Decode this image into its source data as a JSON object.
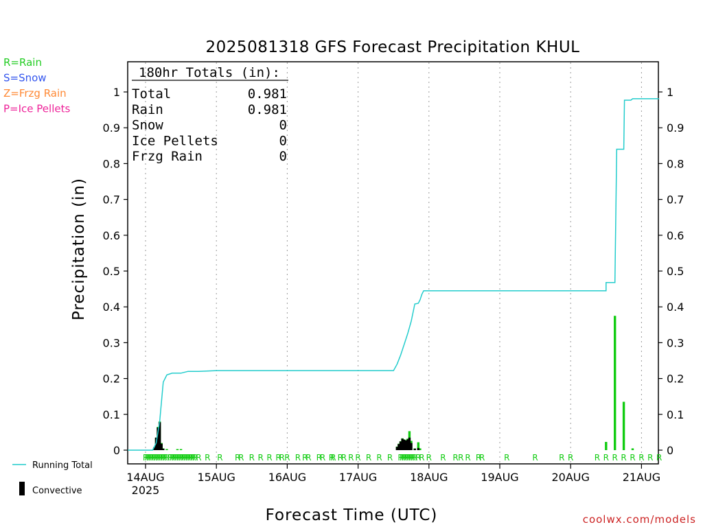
{
  "chart_data": {
    "type": "bar",
    "title": "2025081318 GFS Forecast Precipitation KHUL",
    "ylabel": "Precipitation (in)",
    "xlabel": "Forecast Time (UTC)",
    "ylim": [
      0,
      1.05
    ],
    "y_ticks": [
      "0",
      "0.1",
      "0.2",
      "0.3",
      "0.4",
      "0.5",
      "0.6",
      "0.7",
      "0.8",
      "0.9",
      "1"
    ],
    "x_ticks": [
      {
        "label": "14AUG",
        "day": 0
      },
      {
        "label": "15AUG",
        "day": 1
      },
      {
        "label": "16AUG",
        "day": 2
      },
      {
        "label": "17AUG",
        "day": 3
      },
      {
        "label": "18AUG",
        "day": 4
      },
      {
        "label": "19AUG",
        "day": 5
      },
      {
        "label": "20AUG",
        "day": 6
      },
      {
        "label": "21AUG",
        "day": 7
      }
    ],
    "x_year_label": "2025",
    "x_range_days": [
      -0.25,
      7.25
    ],
    "grid": "vertical dotted at day boundaries",
    "legend_types": [
      {
        "label": "R=Rain",
        "color": "#22cc22"
      },
      {
        "label": "S=Snow",
        "color": "#3355ee"
      },
      {
        "label": "Z=Frzg Rain",
        "color": "#ff8833"
      },
      {
        "label": "P=Ice Pellets",
        "color": "#ee2299"
      }
    ],
    "legend_lines": {
      "running_total": "Running Total",
      "convective": "Convective"
    },
    "totals": {
      "header": "180hr Totals (in):",
      "rows": [
        {
          "label": "Total",
          "value": "0.981"
        },
        {
          "label": "Rain",
          "value": "0.981"
        },
        {
          "label": "Snow",
          "value": "0"
        },
        {
          "label": "Ice Pellets",
          "value": "0"
        },
        {
          "label": "Frzg Rain",
          "value": "0"
        }
      ]
    },
    "running_total": [
      [
        -0.25,
        0
      ],
      [
        0.1,
        0
      ],
      [
        0.15,
        0.02
      ],
      [
        0.2,
        0.08
      ],
      [
        0.25,
        0.19
      ],
      [
        0.3,
        0.21
      ],
      [
        0.375,
        0.215
      ],
      [
        0.5,
        0.215
      ],
      [
        0.6,
        0.22
      ],
      [
        0.75,
        0.22
      ],
      [
        1.0,
        0.222
      ],
      [
        2.0,
        0.222
      ],
      [
        3.0,
        0.222
      ],
      [
        3.5,
        0.222
      ],
      [
        3.55,
        0.24
      ],
      [
        3.6,
        0.265
      ],
      [
        3.65,
        0.295
      ],
      [
        3.7,
        0.325
      ],
      [
        3.75,
        0.36
      ],
      [
        3.8,
        0.408
      ],
      [
        3.85,
        0.41
      ],
      [
        3.875,
        0.42
      ],
      [
        3.9,
        0.435
      ],
      [
        3.925,
        0.445
      ],
      [
        4.0,
        0.445
      ],
      [
        5.0,
        0.445
      ],
      [
        6.0,
        0.445
      ],
      [
        6.5,
        0.445
      ],
      [
        6.5,
        0.468
      ],
      [
        6.625,
        0.468
      ],
      [
        6.65,
        0.84
      ],
      [
        6.75,
        0.84
      ],
      [
        6.76,
        0.977
      ],
      [
        6.85,
        0.977
      ],
      [
        6.875,
        0.981
      ],
      [
        7.25,
        0.981
      ]
    ],
    "series": [
      {
        "name": "Rain",
        "color": "#11cc11",
        "bars": [
          [
            0.125,
            0.008
          ],
          [
            0.15,
            0.035
          ],
          [
            0.175,
            0.065
          ],
          [
            0.2,
            0.08
          ],
          [
            0.225,
            0.02
          ],
          [
            0.25,
            0.005
          ],
          [
            0.3,
            0.003
          ],
          [
            0.45,
            0.003
          ],
          [
            0.5,
            0.003
          ],
          [
            3.55,
            0.01
          ],
          [
            3.575,
            0.018
          ],
          [
            3.6,
            0.025
          ],
          [
            3.625,
            0.033
          ],
          [
            3.65,
            0.03
          ],
          [
            3.675,
            0.028
          ],
          [
            3.7,
            0.032
          ],
          [
            3.725,
            0.053
          ],
          [
            3.75,
            0.026
          ],
          [
            3.8,
            0.005
          ],
          [
            3.85,
            0.022
          ],
          [
            3.875,
            0.005
          ],
          [
            6.5,
            0.023
          ],
          [
            6.625,
            0.375
          ],
          [
            6.75,
            0.135
          ],
          [
            6.875,
            0.005
          ]
        ]
      },
      {
        "name": "Convective",
        "color": "#000000",
        "bars": [
          [
            0.125,
            0.008
          ],
          [
            0.15,
            0.035
          ],
          [
            0.175,
            0.063
          ],
          [
            0.2,
            0.078
          ],
          [
            0.225,
            0.018
          ],
          [
            0.25,
            0.004
          ],
          [
            3.55,
            0.009
          ],
          [
            3.575,
            0.017
          ],
          [
            3.6,
            0.024
          ],
          [
            3.625,
            0.032
          ],
          [
            3.65,
            0.029
          ],
          [
            3.675,
            0.027
          ],
          [
            3.7,
            0.03
          ],
          [
            3.725,
            0.035
          ],
          [
            3.75,
            0.02
          ],
          [
            3.8,
            0.004
          ],
          [
            3.85,
            0.006
          ]
        ]
      }
    ],
    "ptype_marks": {
      "letter": "R",
      "days": [
        0.0,
        0.025,
        0.05,
        0.075,
        0.1,
        0.125,
        0.15,
        0.175,
        0.2,
        0.225,
        0.25,
        0.275,
        0.3,
        0.35,
        0.375,
        0.4,
        0.425,
        0.45,
        0.475,
        0.5,
        0.525,
        0.55,
        0.575,
        0.6,
        0.625,
        0.65,
        0.675,
        0.7,
        0.75,
        0.875,
        1.05,
        1.3,
        1.35,
        1.5,
        1.625,
        1.75,
        1.875,
        1.925,
        2.0,
        2.15,
        2.25,
        2.3,
        2.45,
        2.5,
        2.625,
        2.65,
        2.75,
        2.8,
        2.9,
        3.0,
        3.15,
        3.3,
        3.45,
        3.6,
        3.625,
        3.65,
        3.675,
        3.7,
        3.725,
        3.75,
        3.775,
        3.8,
        3.85,
        3.9,
        4.0,
        4.2,
        4.375,
        4.45,
        4.55,
        4.7,
        4.75,
        5.1,
        5.5,
        5.875,
        6.0,
        6.375,
        6.5,
        6.625,
        6.75,
        6.875,
        7.0,
        7.125,
        7.25
      ]
    },
    "watermark": "coolwx.com/models"
  }
}
